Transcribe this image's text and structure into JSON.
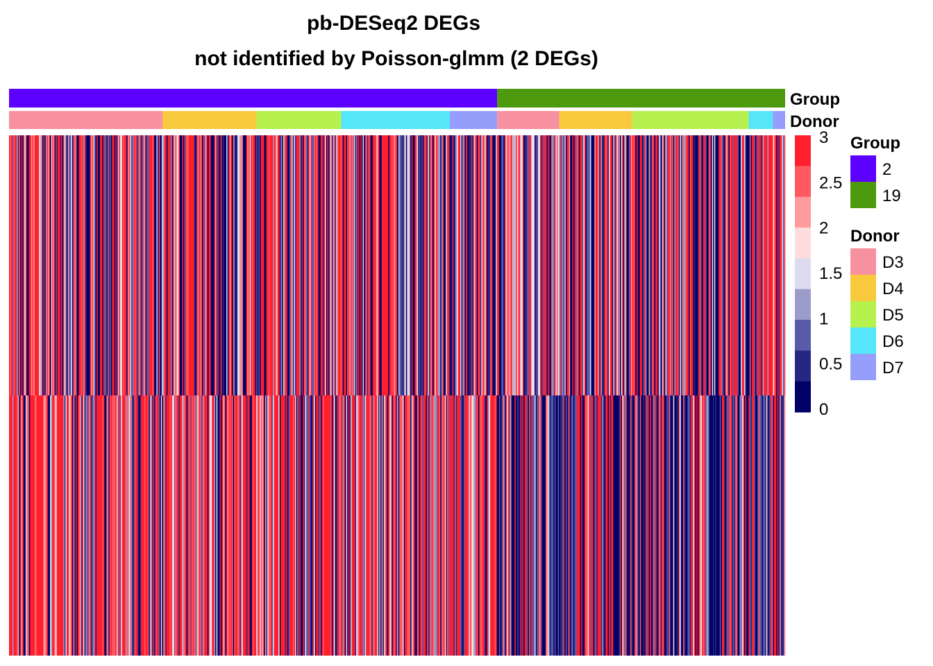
{
  "chart_data": {
    "type": "heatmap",
    "title_line1": "pb-DESeq2 DEGs",
    "title_line2": "not identified by Poisson-glmm (2 DEGs)",
    "rows": 2,
    "columns": 700,
    "value_range": [
      0,
      3
    ],
    "annotations": [
      {
        "name": "Group",
        "segments": [
          {
            "label": "2",
            "start_fraction": 0.0,
            "end_fraction": 0.629,
            "color": "#5C00FF"
          },
          {
            "label": "19",
            "start_fraction": 0.629,
            "end_fraction": 1.0,
            "color": "#4E9A0F"
          }
        ]
      },
      {
        "name": "Donor",
        "segments": [
          {
            "label": "D3",
            "start_fraction": 0.0,
            "end_fraction": 0.198,
            "color": "#F7909F"
          },
          {
            "label": "D4",
            "start_fraction": 0.198,
            "end_fraction": 0.319,
            "color": "#F9C93D"
          },
          {
            "label": "D5",
            "start_fraction": 0.319,
            "end_fraction": 0.428,
            "color": "#B6F150"
          },
          {
            "label": "D6",
            "start_fraction": 0.428,
            "end_fraction": 0.568,
            "color": "#56E6F9"
          },
          {
            "label": "D7",
            "start_fraction": 0.568,
            "end_fraction": 0.629,
            "color": "#959FFB"
          },
          {
            "label": "D3",
            "start_fraction": 0.629,
            "end_fraction": 0.709,
            "color": "#F7909F"
          },
          {
            "label": "D4",
            "start_fraction": 0.709,
            "end_fraction": 0.803,
            "color": "#F9C93D"
          },
          {
            "label": "D5",
            "start_fraction": 0.803,
            "end_fraction": 0.953,
            "color": "#B6F150"
          },
          {
            "label": "D6",
            "start_fraction": 0.953,
            "end_fraction": 0.984,
            "color": "#56E6F9"
          },
          {
            "label": "D7",
            "start_fraction": 0.984,
            "end_fraction": 1.0,
            "color": "#959FFB"
          }
        ]
      }
    ],
    "row_patterns": [
      {
        "row": 1,
        "segments": [
          {
            "start_fraction": 0.0,
            "end_fraction": 0.629,
            "p_low": 0.38,
            "p_mid": 0.2,
            "p_high": 0.42
          },
          {
            "start_fraction": 0.629,
            "end_fraction": 1.0,
            "p_low": 0.42,
            "p_mid": 0.2,
            "p_high": 0.38
          }
        ]
      },
      {
        "row": 2,
        "segments": [
          {
            "start_fraction": 0.0,
            "end_fraction": 0.629,
            "p_low": 0.22,
            "p_mid": 0.18,
            "p_high": 0.6
          },
          {
            "start_fraction": 0.629,
            "end_fraction": 1.0,
            "p_low": 0.66,
            "p_mid": 0.12,
            "p_high": 0.22
          }
        ]
      }
    ],
    "color_scale": {
      "title": "",
      "stops": [
        {
          "value": 0,
          "color": "#000066"
        },
        {
          "value": 0.375,
          "color": "#262683"
        },
        {
          "value": 0.75,
          "color": "#5A5AAA"
        },
        {
          "value": 1.125,
          "color": "#9C9CCB"
        },
        {
          "value": 1.5,
          "color": "#DCDCEE"
        },
        {
          "value": 1.875,
          "color": "#FFDCDD"
        },
        {
          "value": 2.25,
          "color": "#FF9A9E"
        },
        {
          "value": 2.625,
          "color": "#FF5962"
        },
        {
          "value": 3,
          "color": "#FF1F2D"
        }
      ],
      "tick_labels": [
        "3",
        "2.5",
        "2",
        "1.5",
        "1",
        "0.5",
        "0"
      ]
    },
    "legends": [
      {
        "title": "Group",
        "items": [
          {
            "label": "2",
            "color": "#5C00FF"
          },
          {
            "label": "19",
            "color": "#4E9A0F"
          }
        ]
      },
      {
        "title": "Donor",
        "items": [
          {
            "label": "D3",
            "color": "#F7909F"
          },
          {
            "label": "D4",
            "color": "#F9C93D"
          },
          {
            "label": "D5",
            "color": "#B6F150"
          },
          {
            "label": "D6",
            "color": "#56E6F9"
          },
          {
            "label": "D7",
            "color": "#959FFB"
          }
        ]
      }
    ]
  }
}
